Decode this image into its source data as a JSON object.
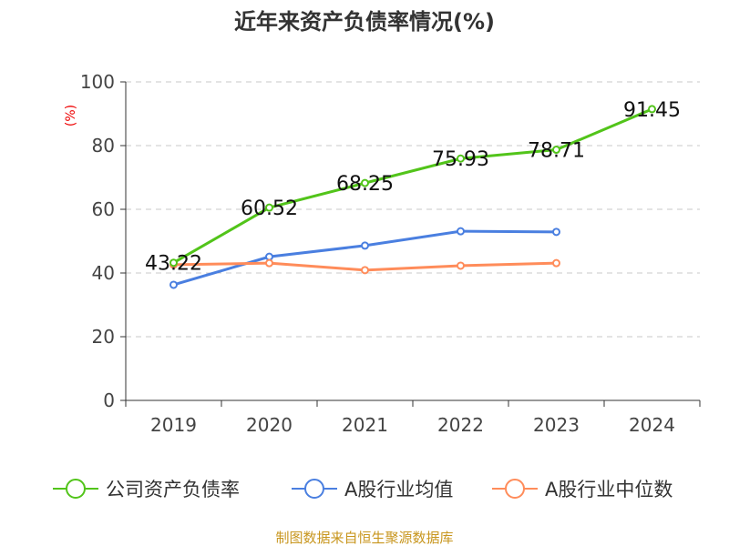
{
  "chart_data": {
    "type": "line",
    "title": "近年来资产负债率情况(%)",
    "ylabel": "(%)",
    "xlabel": "",
    "categories": [
      "2019",
      "2020",
      "2021",
      "2022",
      "2023",
      "2024"
    ],
    "ylim": [
      0,
      100
    ],
    "yticks": [
      0,
      20,
      40,
      60,
      80,
      100
    ],
    "grid": true,
    "legend_position": "bottom",
    "series": [
      {
        "name": "公司资产负债率",
        "color": "#52c41a",
        "values": [
          43.22,
          60.52,
          68.25,
          75.93,
          78.71,
          91.45
        ],
        "labels": [
          "43.22",
          "60.52",
          "68.25",
          "75.93",
          "78.71",
          "91.45"
        ]
      },
      {
        "name": "A股行业均值",
        "color": "#4a7fe0",
        "values": [
          36.3,
          45.1,
          48.6,
          53.1,
          52.9,
          null
        ]
      },
      {
        "name": "A股行业中位数",
        "color": "#ff8c5a",
        "values": [
          42.6,
          43.1,
          40.9,
          42.3,
          43.1,
          null
        ]
      }
    ]
  },
  "footer": {
    "source": "制图数据来自恒生聚源数据库"
  }
}
